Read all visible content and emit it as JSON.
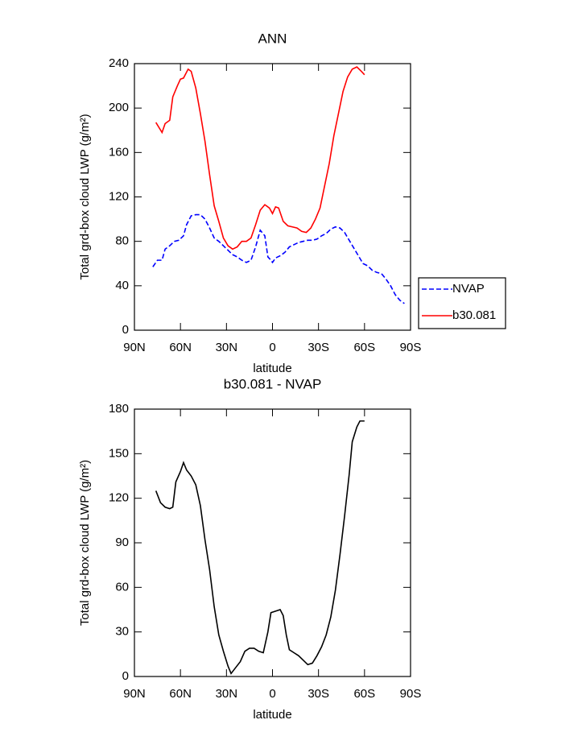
{
  "chart_data": [
    {
      "type": "line",
      "title": "ANN",
      "xlabel": "latitude",
      "ylabel": "Total grd-box cloud LWP (g/m²)",
      "xlim": [
        90,
        -90
      ],
      "xticks": [
        {
          "value": 90,
          "label": "90N"
        },
        {
          "value": 60,
          "label": "60N"
        },
        {
          "value": 30,
          "label": "30N"
        },
        0,
        {
          "value": -30,
          "label": "30S"
        },
        {
          "value": -60,
          "label": "60S"
        },
        {
          "value": -90,
          "label": "90S"
        }
      ],
      "ylim": [
        0,
        240
      ],
      "yticks": [
        0,
        40,
        80,
        120,
        160,
        200,
        240
      ],
      "legend": "right",
      "series": [
        {
          "name": "NVAP",
          "color": "#0000ff",
          "style": "dashed",
          "x": [
            78,
            75,
            72,
            70,
            67,
            64,
            61,
            58,
            56,
            53,
            50,
            47,
            44,
            41,
            38,
            35,
            32,
            29,
            26,
            23,
            20,
            17,
            14,
            11,
            8,
            5,
            3,
            1,
            0,
            -2,
            -5,
            -8,
            -11,
            -14,
            -17,
            -20,
            -23,
            -26,
            -29,
            -32,
            -35,
            -38,
            -41,
            -44,
            -47,
            -50,
            -53,
            -56,
            -59,
            -62,
            -65,
            -68,
            -71,
            -74,
            -77,
            -80,
            -83,
            -86
          ],
          "values": [
            57,
            63,
            63,
            73,
            76,
            80,
            81,
            85,
            95,
            103,
            104,
            104,
            100,
            92,
            83,
            80,
            76,
            72,
            68,
            66,
            63,
            61,
            63,
            75,
            90,
            85,
            66,
            63,
            61,
            65,
            67,
            70,
            75,
            77,
            79,
            80,
            81,
            81,
            82,
            85,
            87,
            91,
            93,
            92,
            88,
            81,
            74,
            67,
            60,
            58,
            54,
            52,
            51,
            46,
            40,
            32,
            27,
            24
          ]
        },
        {
          "name": "b30.081",
          "color": "#ff0000",
          "style": "solid",
          "x": [
            76,
            72,
            70,
            67,
            65,
            62,
            60,
            58,
            55,
            53,
            50,
            47,
            44,
            41,
            38,
            35,
            32,
            29,
            26,
            23,
            20,
            17,
            14,
            11,
            8,
            5,
            2,
            0,
            -2,
            -4,
            -7,
            -10,
            -13,
            -16,
            -19,
            -22,
            -25,
            -28,
            -31,
            -34,
            -37,
            -40,
            -43,
            -46,
            -49,
            -52,
            -55,
            -58,
            -60
          ],
          "values": [
            187,
            178,
            186,
            189,
            210,
            220,
            226,
            227,
            235,
            233,
            218,
            195,
            170,
            140,
            112,
            98,
            83,
            76,
            73,
            75,
            80,
            80,
            83,
            95,
            108,
            113,
            110,
            105,
            111,
            110,
            98,
            94,
            93,
            92,
            89,
            88,
            92,
            100,
            110,
            130,
            150,
            175,
            195,
            215,
            228,
            235,
            237,
            233,
            230
          ]
        }
      ]
    },
    {
      "type": "line",
      "title": "b30.081 - NVAP",
      "xlabel": "latitude",
      "ylabel": "Total grd-box cloud LWP (g/m²)",
      "xlim": [
        90,
        -90
      ],
      "xticks": [
        {
          "value": 90,
          "label": "90N"
        },
        {
          "value": 60,
          "label": "60N"
        },
        {
          "value": 30,
          "label": "30N"
        },
        0,
        {
          "value": -30,
          "label": "30S"
        },
        {
          "value": -60,
          "label": "60S"
        },
        {
          "value": -90,
          "label": "90S"
        }
      ],
      "ylim": [
        0,
        180
      ],
      "yticks": [
        0,
        30,
        60,
        90,
        120,
        150,
        180
      ],
      "series": [
        {
          "color": "#000000",
          "style": "solid",
          "x": [
            76,
            73,
            70,
            67,
            65,
            63,
            60,
            58,
            56,
            53,
            50,
            47,
            44,
            41,
            38,
            35,
            32,
            29,
            27,
            24,
            21,
            18,
            15,
            12,
            9,
            6,
            3,
            1,
            -2,
            -5,
            -7,
            -9,
            -11,
            -14,
            -17,
            -20,
            -23,
            -26,
            -29,
            -32,
            -35,
            -38,
            -41,
            -44,
            -47,
            -50,
            -52,
            -55,
            -57,
            -60
          ],
          "values": [
            125,
            117,
            114,
            113,
            114,
            131,
            138,
            144,
            139,
            135,
            129,
            115,
            92,
            72,
            47,
            28,
            17,
            7,
            2,
            6,
            10,
            17,
            19,
            19,
            17,
            16,
            30,
            43,
            44,
            45,
            41,
            28,
            18,
            16,
            14,
            11,
            8,
            9,
            14,
            20,
            28,
            40,
            58,
            82,
            108,
            136,
            158,
            168,
            172,
            172
          ]
        }
      ]
    }
  ]
}
